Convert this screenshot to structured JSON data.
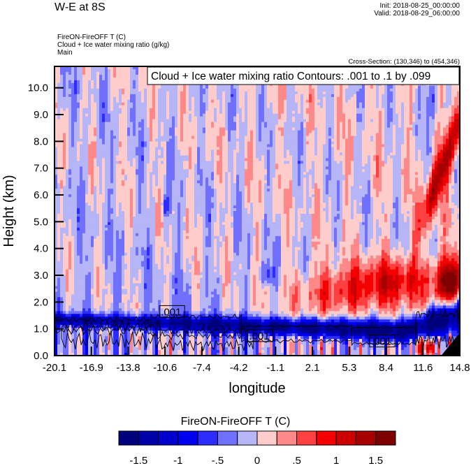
{
  "header": {
    "title": "W-E at 8S",
    "init": "Init: 2018-08-25_00:00:00",
    "valid": "Valid: 2018-08-29_06:00:00",
    "subtitle_lines": [
      "FireON-FireOFF T   (C)",
      "Cloud + Ice water mixing ratio   (g/kg)",
      "Main"
    ],
    "cross_section": "Cross-Section: (130,346) to (454,346)"
  },
  "chart_data": {
    "type": "heatmap",
    "title": "W-E at 8S",
    "fill_variable": "FireON-FireOFF T   (C)",
    "contour_variable": "Cloud + Ice water mixing ratio   (g/kg)",
    "contour_info": "Cloud + Ice water mixing ratio Contours: .001 to .1 by .099",
    "contour_levels": [
      0.001,
      0.1
    ],
    "contour_labels": [
      ".001",
      ".001",
      ".001"
    ],
    "xlabel": "longitude",
    "ylabel": "Height (km)",
    "xlim": [
      -20.1,
      14.8
    ],
    "ylim": [
      0.0,
      10.8
    ],
    "x_ticks": [
      "-20.1",
      "-16.9",
      "-13.8",
      "-10.6",
      "-7.4",
      "-4.2",
      "-1.1",
      "2.1",
      "5.3",
      "8.4",
      "11.6",
      "14.8"
    ],
    "y_ticks": [
      "0.0",
      "1.0",
      "2.0",
      "3.0",
      "4.0",
      "5.0",
      "6.0",
      "7.0",
      "8.0",
      "9.0",
      "10.0"
    ],
    "y_tick_values": [
      0,
      1,
      2,
      3,
      4,
      5,
      6,
      7,
      8,
      9,
      10
    ],
    "background_level": 0.0,
    "features": [
      {
        "name": "near-surface cooling layer",
        "x": [
          -20.1,
          14.8
        ],
        "y_center": 1.2,
        "value": -1.5
      },
      {
        "name": "warm plume aloft east",
        "x": [
          2.0,
          14.8
        ],
        "y_center": 2.5,
        "value": 1.0
      },
      {
        "name": "warm band upper east",
        "x": [
          12.0,
          14.8
        ],
        "y_center": 6.5,
        "value": 1.25
      },
      {
        "name": "surface warming west",
        "x": [
          -20.1,
          -4.2
        ],
        "y_center": 0.5,
        "value": 0.5
      }
    ],
    "colorbar": {
      "title": "FireON-FireOFF T  (C)",
      "levels": [
        -1.75,
        -1.5,
        -1.25,
        -1,
        -0.75,
        -0.5,
        -0.25,
        0,
        0.25,
        0.5,
        0.75,
        1,
        1.25,
        1.5,
        1.75
      ],
      "colors": [
        "#00007f",
        "#0000a8",
        "#0000cc",
        "#0000f0",
        "#2c2cff",
        "#7070ff",
        "#b5b5f7",
        "#ffcccc",
        "#ff8888",
        "#ff4040",
        "#f50000",
        "#cc0000",
        "#a80000",
        "#7f0000"
      ],
      "tick_labels": [
        "-1.5",
        "-1",
        "-.5",
        "0",
        ".5",
        "1",
        "1.5"
      ],
      "tick_values": [
        -1.5,
        -1,
        -0.5,
        0,
        0.5,
        1,
        1.5
      ]
    },
    "terrain_color": "#000000",
    "grid": false
  }
}
